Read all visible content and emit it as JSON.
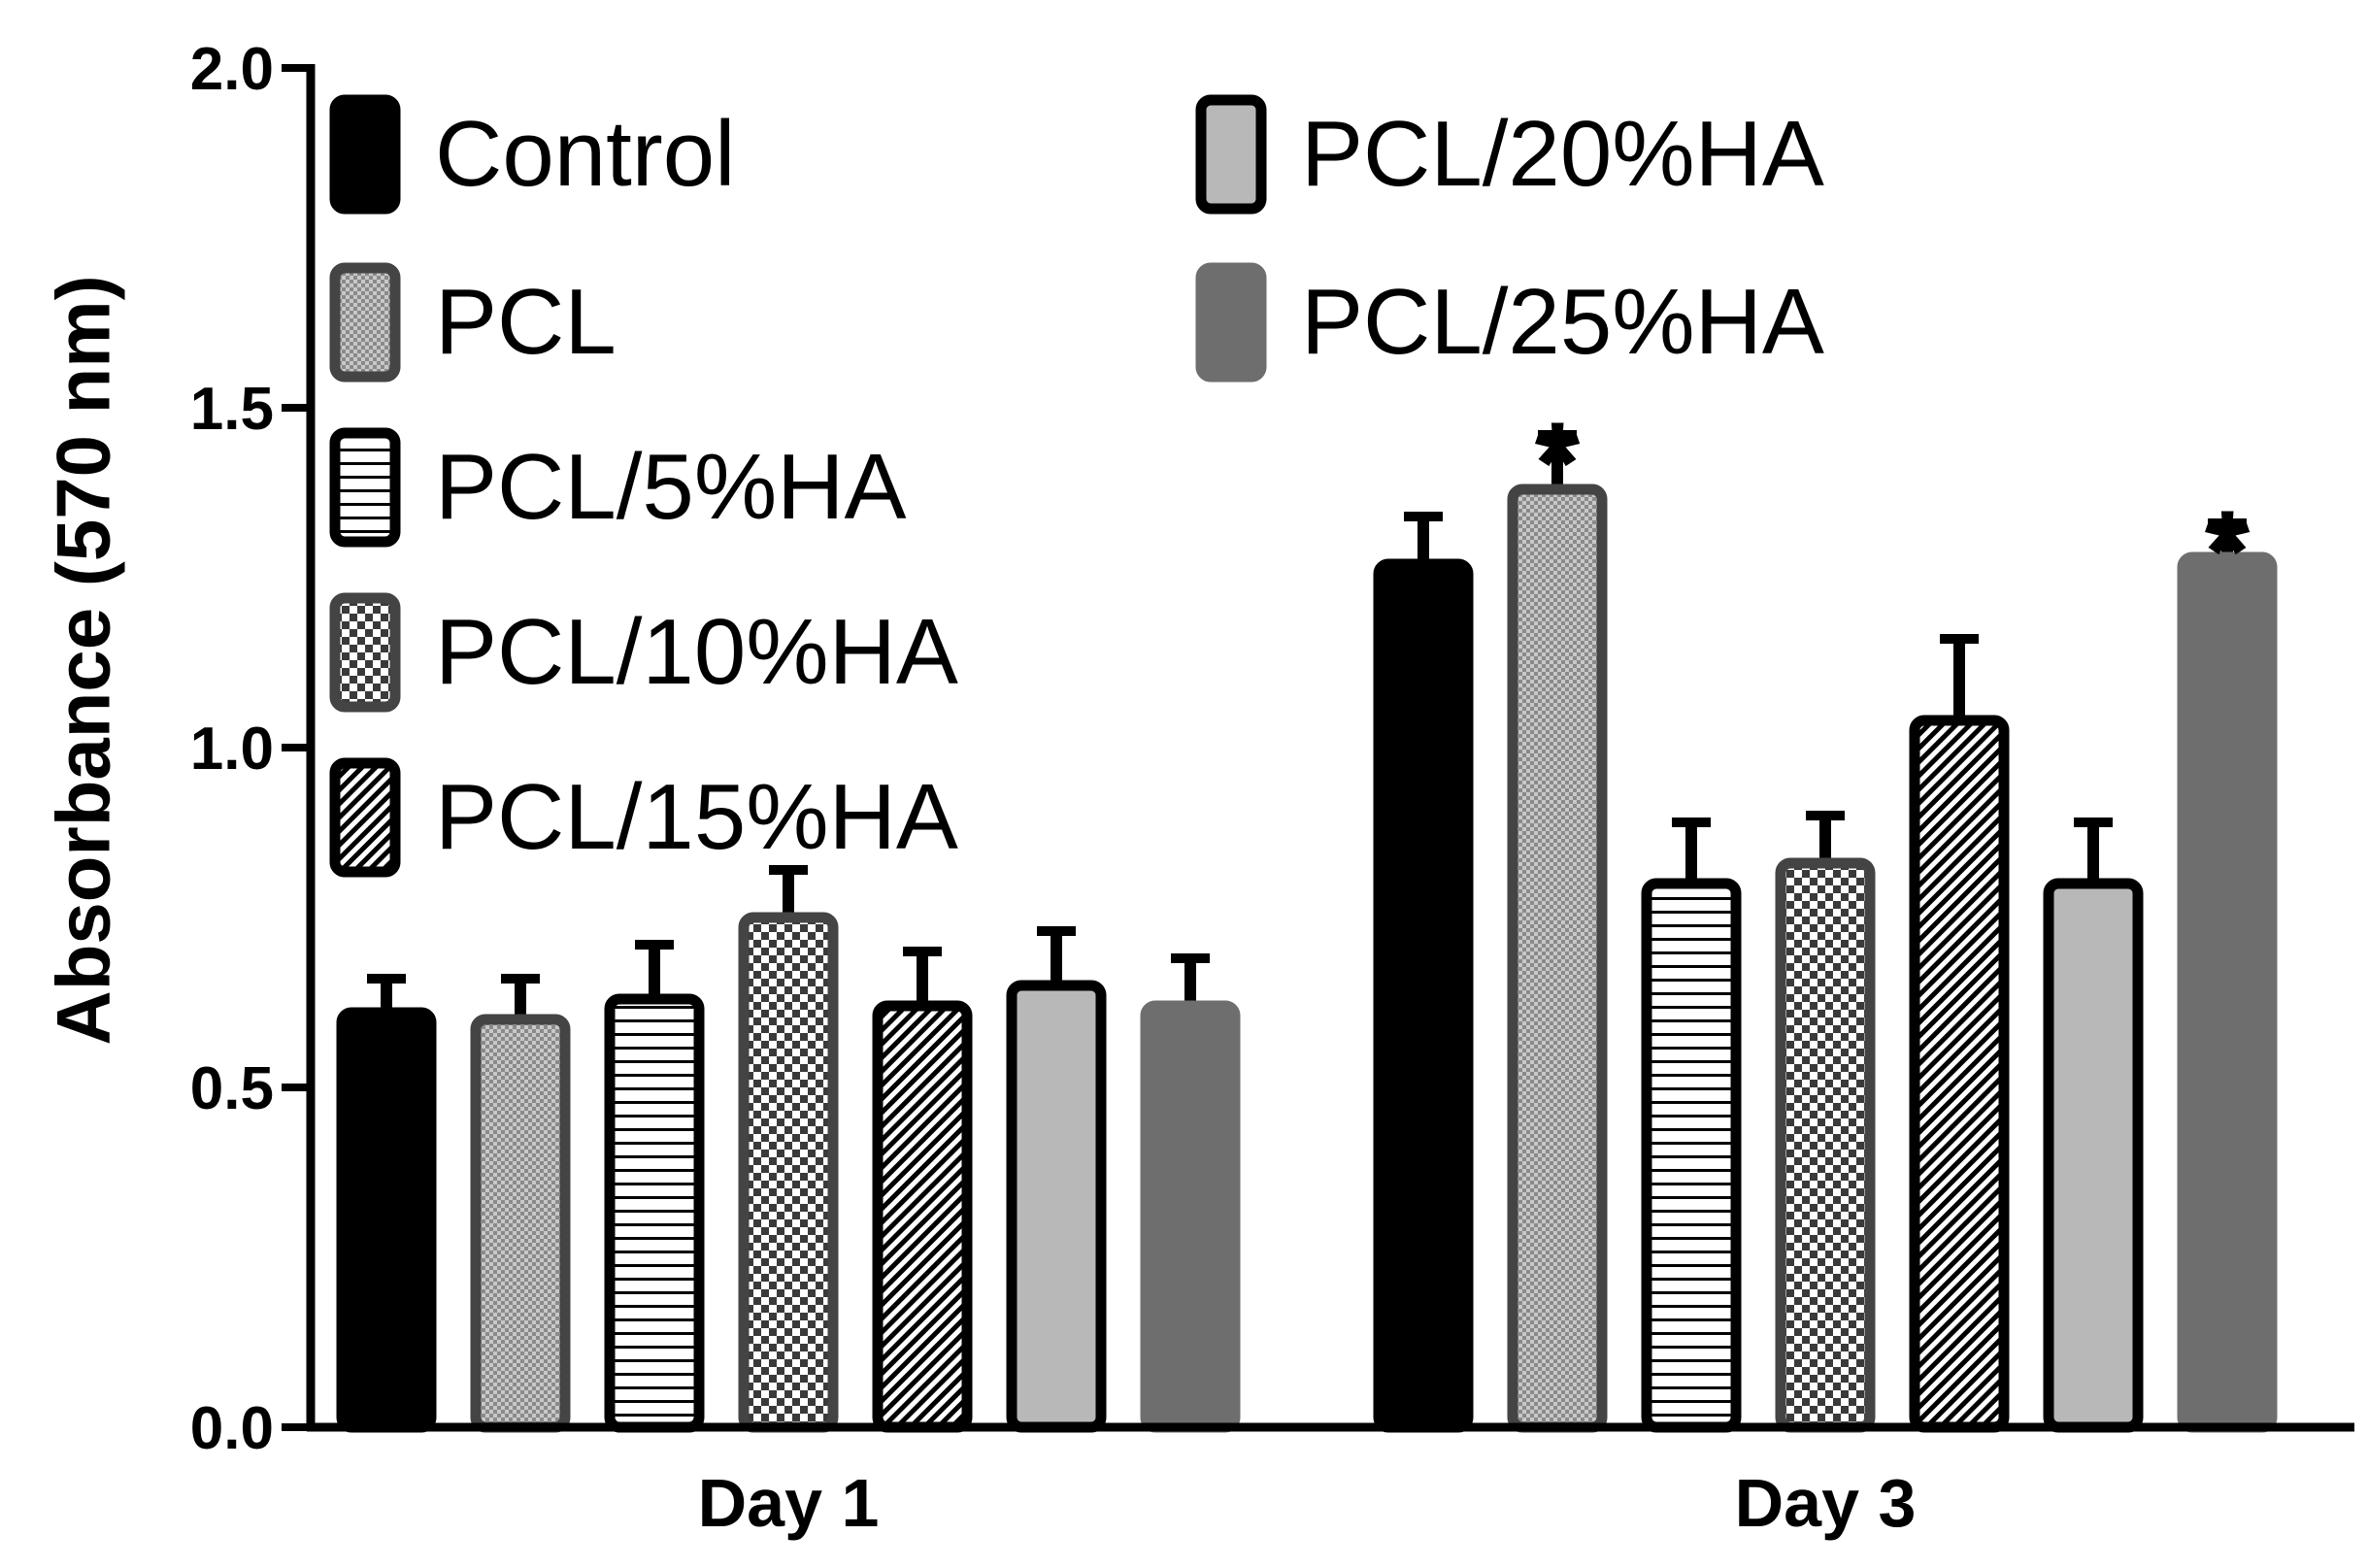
{
  "chart_data": {
    "type": "bar",
    "title": "",
    "xlabel": "",
    "ylabel": "Absorbance (570 nm)",
    "ylim": [
      0.0,
      2.0
    ],
    "yticks": [
      "0.0",
      "0.5",
      "1.0",
      "1.5",
      "2.0"
    ],
    "categories": [
      "Day 1",
      "Day 3"
    ],
    "series": [
      {
        "name": "Control",
        "values": [
          0.61,
          1.27
        ],
        "errors": [
          0.05,
          0.07
        ],
        "fill": "#000000",
        "stroke": "#000000",
        "pattern": "solid"
      },
      {
        "name": "PCL",
        "values": [
          0.6,
          1.38
        ],
        "errors": [
          0.06,
          0.08
        ],
        "fill": "#9a9a9a",
        "stroke": "#444444",
        "pattern": "fine-check"
      },
      {
        "name": "PCL/5%HA",
        "values": [
          0.63,
          0.8
        ],
        "errors": [
          0.08,
          0.09
        ],
        "fill": "#ffffff",
        "stroke": "#000000",
        "pattern": "horizontal-lines"
      },
      {
        "name": "PCL/10%HA",
        "values": [
          0.75,
          0.83
        ],
        "errors": [
          0.07,
          0.07
        ],
        "fill": "#ffffff",
        "stroke": "#444444",
        "pattern": "checker"
      },
      {
        "name": "PCL/15%HA",
        "values": [
          0.62,
          1.04
        ],
        "errors": [
          0.08,
          0.12
        ],
        "fill": "#555555",
        "stroke": "#000000",
        "pattern": "diagonal-lines"
      },
      {
        "name": "PCL/20%HA",
        "values": [
          0.65,
          0.8
        ],
        "errors": [
          0.08,
          0.09
        ],
        "fill": "#b8b8b8",
        "stroke": "#000000",
        "pattern": "solid"
      },
      {
        "name": "PCL/25%HA",
        "values": [
          0.62,
          1.28
        ],
        "errors": [
          0.07,
          0.05
        ],
        "fill": "#6e6e6e",
        "stroke": "#6e6e6e",
        "pattern": "solid"
      }
    ],
    "annotations": [
      {
        "text": "*",
        "series": "PCL",
        "category": "Day 3"
      },
      {
        "text": "*",
        "series": "PCL/25%HA",
        "category": "Day 3"
      }
    ],
    "legend": {
      "placement": "top-left",
      "columns": [
        [
          "Control",
          "PCL",
          "PCL/5%HA",
          "PCL/10%HA",
          "PCL/15%HA"
        ],
        [
          "PCL/20%HA",
          "PCL/25%HA"
        ]
      ]
    }
  }
}
